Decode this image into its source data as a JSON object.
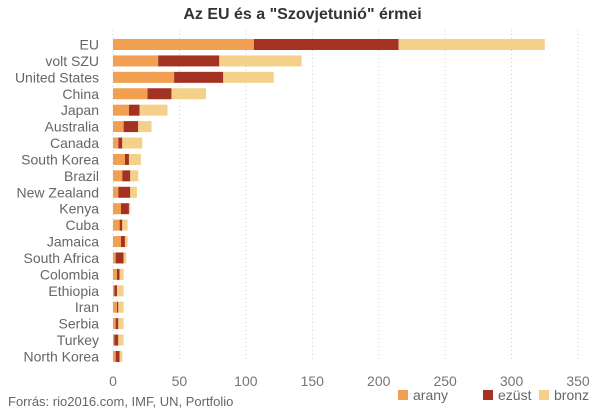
{
  "chart_data": {
    "type": "bar",
    "orientation": "horizontal",
    "stacked": true,
    "title": "Az EU és a \"Szovjetunió\" érmei",
    "categories": [
      "EU",
      "volt SZU",
      "United States",
      "China",
      "Japan",
      "Australia",
      "Canada",
      "South Korea",
      "Brazil",
      "New Zealand",
      "Kenya",
      "Cuba",
      "Jamaica",
      "South Africa",
      "Colombia",
      "Ethiopia",
      "Iran",
      "Serbia",
      "Turkey",
      "North Korea"
    ],
    "series": [
      {
        "name": "arany",
        "color": "#f0a050",
        "values": [
          106,
          34,
          46,
          26,
          12,
          8,
          4,
          9,
          7,
          4,
          6,
          5,
          6,
          2,
          3,
          1,
          3,
          2,
          1,
          2
        ]
      },
      {
        "name": "ezüst",
        "color": "#a33222",
        "values": [
          109,
          46,
          37,
          18,
          8,
          11,
          3,
          3,
          6,
          9,
          6,
          2,
          3,
          6,
          2,
          2,
          1,
          2,
          3,
          3
        ]
      },
      {
        "name": "bronz",
        "color": "#f5d08a",
        "values": [
          110,
          62,
          38,
          26,
          21,
          10,
          15,
          9,
          6,
          5,
          1,
          4,
          2,
          2,
          3,
          5,
          4,
          4,
          4,
          2
        ]
      }
    ],
    "xlim": [
      0,
      350
    ],
    "xticks": [
      "0",
      "50",
      "100",
      "150",
      "200",
      "250",
      "300",
      "350"
    ],
    "grid": "vertical dotted",
    "legend_position": "bottom-right"
  },
  "source": "Forrás: rio2016.com, IMF, UN, Portfolio"
}
